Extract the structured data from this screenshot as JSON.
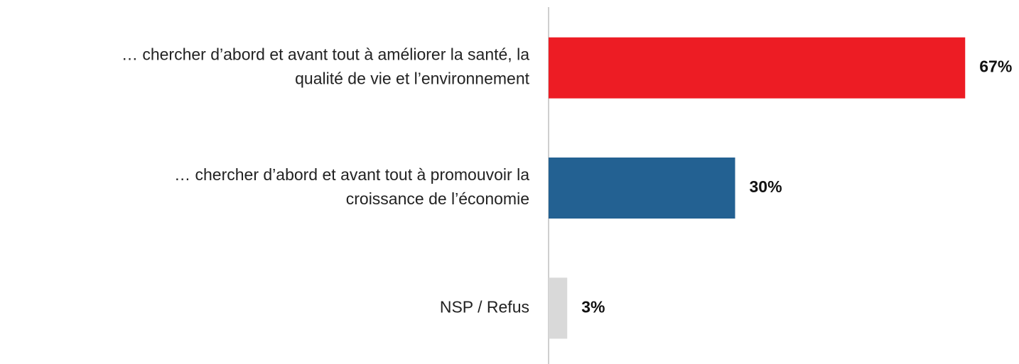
{
  "chart_data": {
    "type": "bar",
    "orientation": "horizontal",
    "categories": [
      [
        "… chercher d’abord et avant tout à améliorer la santé, la",
        "qualité de vie et l’environnement"
      ],
      [
        "… chercher d’abord et avant tout à promouvoir la",
        "croissance de l’économie"
      ],
      [
        "NSP / Refus"
      ]
    ],
    "values": [
      67,
      30,
      3
    ],
    "value_labels": [
      "67%",
      "30%",
      "3%"
    ],
    "colors": [
      "#ed1c24",
      "#236192",
      "#d9d9d9"
    ],
    "xlim": [
      0,
      70
    ]
  }
}
